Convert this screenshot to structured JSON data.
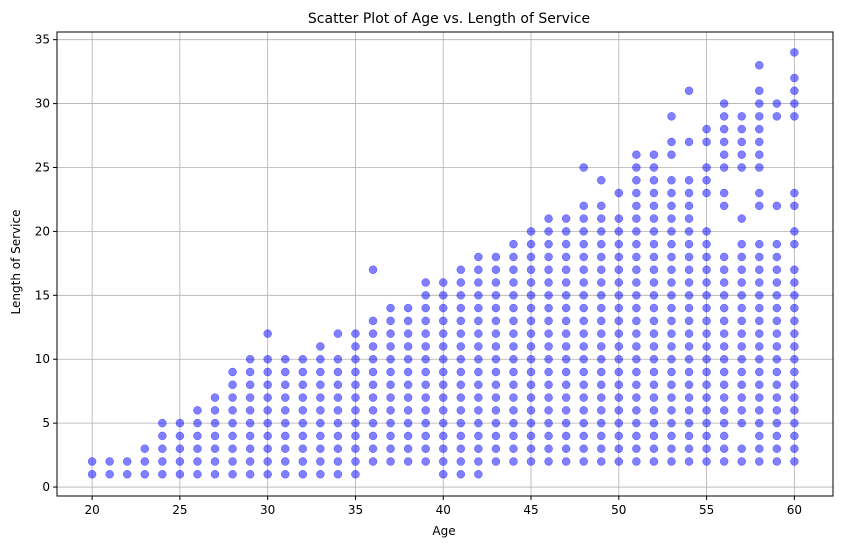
{
  "chart_data": {
    "type": "scatter",
    "title": "Scatter Plot of Age vs. Length of Service",
    "xlabel": "Age",
    "ylabel": "Length of Service",
    "xlim": [
      18,
      62.2
    ],
    "ylim": [
      -0.7,
      35.6
    ],
    "xticks": [
      20,
      25,
      30,
      35,
      40,
      45,
      50,
      55,
      60
    ],
    "yticks": [
      0,
      5,
      10,
      15,
      20,
      25,
      30,
      35
    ],
    "grid": true,
    "marker_color": "#0000ff",
    "marker_alpha": 0.5,
    "columns": [
      {
        "x": 20,
        "ys": [
          1,
          2
        ]
      },
      {
        "x": 21,
        "ys": [
          1,
          2
        ]
      },
      {
        "x": 22,
        "ys": [
          1,
          2
        ]
      },
      {
        "x": 23,
        "ys": [
          1,
          2,
          3
        ]
      },
      {
        "x": 24,
        "ys": [
          1,
          2,
          3,
          4,
          5
        ]
      },
      {
        "x": 25,
        "ys": [
          1,
          2,
          3,
          4,
          5
        ]
      },
      {
        "x": 26,
        "ys": [
          1,
          2,
          3,
          4,
          5,
          6
        ]
      },
      {
        "x": 27,
        "ys": [
          1,
          2,
          3,
          4,
          5,
          6,
          7
        ]
      },
      {
        "x": 28,
        "ys": [
          1,
          2,
          3,
          4,
          5,
          6,
          7,
          8,
          9
        ]
      },
      {
        "x": 29,
        "ys": [
          1,
          2,
          3,
          4,
          5,
          6,
          7,
          8,
          9,
          10
        ]
      },
      {
        "x": 30,
        "ys": [
          1,
          2,
          3,
          4,
          5,
          6,
          7,
          8,
          9,
          10,
          12
        ]
      },
      {
        "x": 31,
        "ys": [
          1,
          2,
          3,
          4,
          5,
          6,
          7,
          8,
          9,
          10
        ]
      },
      {
        "x": 32,
        "ys": [
          1,
          2,
          3,
          4,
          5,
          6,
          7,
          8,
          9,
          10
        ]
      },
      {
        "x": 33,
        "ys": [
          1,
          2,
          3,
          4,
          5,
          6,
          7,
          8,
          9,
          10,
          11
        ]
      },
      {
        "x": 34,
        "ys": [
          1,
          2,
          3,
          4,
          5,
          6,
          7,
          8,
          9,
          10,
          12
        ]
      },
      {
        "x": 35,
        "ys": [
          1,
          2,
          3,
          4,
          5,
          6,
          7,
          8,
          9,
          10,
          11,
          12
        ]
      },
      {
        "x": 36,
        "ys": [
          2,
          3,
          4,
          5,
          6,
          7,
          8,
          9,
          10,
          11,
          12,
          13,
          17
        ]
      },
      {
        "x": 37,
        "ys": [
          2,
          3,
          4,
          5,
          6,
          7,
          8,
          9,
          10,
          11,
          12,
          13,
          14
        ]
      },
      {
        "x": 38,
        "ys": [
          2,
          3,
          4,
          5,
          6,
          7,
          8,
          9,
          10,
          11,
          12,
          13,
          14
        ]
      },
      {
        "x": 39,
        "ys": [
          2,
          3,
          4,
          5,
          6,
          7,
          8,
          9,
          10,
          11,
          12,
          13,
          14,
          15,
          16
        ]
      },
      {
        "x": 40,
        "ys": [
          1,
          2,
          3,
          4,
          5,
          6,
          7,
          8,
          9,
          10,
          11,
          12,
          13,
          14,
          15,
          16
        ]
      },
      {
        "x": 41,
        "ys": [
          1,
          2,
          3,
          4,
          5,
          6,
          7,
          8,
          9,
          10,
          11,
          12,
          13,
          14,
          15,
          16,
          17
        ]
      },
      {
        "x": 42,
        "ys": [
          1,
          2,
          3,
          4,
          5,
          6,
          7,
          8,
          9,
          10,
          11,
          12,
          13,
          14,
          15,
          16,
          17,
          18
        ]
      },
      {
        "x": 43,
        "ys": [
          2,
          3,
          4,
          5,
          6,
          7,
          8,
          9,
          10,
          11,
          12,
          13,
          14,
          15,
          16,
          17,
          18
        ]
      },
      {
        "x": 44,
        "ys": [
          2,
          3,
          4,
          5,
          6,
          7,
          8,
          9,
          10,
          11,
          12,
          13,
          14,
          15,
          16,
          17,
          18,
          19
        ]
      },
      {
        "x": 45,
        "ys": [
          2,
          3,
          4,
          5,
          6,
          7,
          8,
          9,
          10,
          11,
          12,
          13,
          14,
          15,
          16,
          17,
          18,
          19,
          20
        ]
      },
      {
        "x": 46,
        "ys": [
          2,
          3,
          4,
          5,
          6,
          7,
          8,
          9,
          10,
          11,
          12,
          13,
          14,
          15,
          16,
          17,
          18,
          19,
          20,
          21
        ]
      },
      {
        "x": 47,
        "ys": [
          2,
          3,
          4,
          5,
          6,
          7,
          8,
          9,
          10,
          11,
          12,
          13,
          14,
          15,
          16,
          17,
          18,
          19,
          20,
          21
        ]
      },
      {
        "x": 48,
        "ys": [
          2,
          3,
          4,
          5,
          6,
          7,
          8,
          9,
          10,
          11,
          12,
          13,
          14,
          15,
          16,
          17,
          18,
          19,
          20,
          21,
          22,
          25
        ]
      },
      {
        "x": 49,
        "ys": [
          2,
          3,
          4,
          5,
          6,
          7,
          8,
          9,
          10,
          11,
          12,
          13,
          14,
          15,
          16,
          17,
          18,
          19,
          20,
          21,
          22,
          24
        ]
      },
      {
        "x": 50,
        "ys": [
          2,
          3,
          4,
          5,
          6,
          7,
          8,
          9,
          10,
          11,
          12,
          13,
          14,
          15,
          16,
          17,
          18,
          19,
          20,
          21,
          23
        ]
      },
      {
        "x": 51,
        "ys": [
          2,
          3,
          4,
          5,
          6,
          7,
          8,
          9,
          10,
          11,
          12,
          13,
          14,
          15,
          16,
          17,
          18,
          19,
          20,
          21,
          22,
          23,
          24,
          25,
          26
        ]
      },
      {
        "x": 52,
        "ys": [
          2,
          3,
          4,
          5,
          6,
          7,
          8,
          9,
          10,
          11,
          12,
          13,
          14,
          15,
          16,
          17,
          18,
          19,
          20,
          21,
          22,
          23,
          24,
          25,
          26
        ]
      },
      {
        "x": 53,
        "ys": [
          2,
          3,
          4,
          5,
          6,
          7,
          8,
          9,
          10,
          11,
          12,
          13,
          14,
          15,
          16,
          17,
          18,
          19,
          20,
          21,
          22,
          23,
          24,
          26,
          27,
          29
        ]
      },
      {
        "x": 54,
        "ys": [
          2,
          3,
          4,
          5,
          6,
          7,
          8,
          9,
          10,
          11,
          12,
          13,
          14,
          15,
          16,
          17,
          18,
          19,
          20,
          21,
          22,
          23,
          24,
          27,
          31
        ]
      },
      {
        "x": 55,
        "ys": [
          2,
          3,
          4,
          5,
          6,
          7,
          8,
          9,
          10,
          11,
          12,
          13,
          14,
          15,
          16,
          17,
          18,
          19,
          20,
          23,
          24,
          25,
          27,
          28
        ]
      },
      {
        "x": 56,
        "ys": [
          2,
          3,
          4,
          5,
          6,
          7,
          8,
          9,
          10,
          11,
          12,
          13,
          14,
          15,
          16,
          17,
          18,
          22,
          23,
          25,
          26,
          27,
          28,
          29,
          30
        ]
      },
      {
        "x": 57,
        "ys": [
          2,
          3,
          5,
          6,
          7,
          8,
          9,
          10,
          11,
          12,
          13,
          14,
          15,
          16,
          17,
          18,
          19,
          21,
          25,
          26,
          27,
          28,
          29
        ]
      },
      {
        "x": 58,
        "ys": [
          2,
          3,
          4,
          5,
          6,
          7,
          8,
          9,
          10,
          11,
          12,
          13,
          14,
          15,
          16,
          17,
          18,
          19,
          22,
          23,
          25,
          26,
          27,
          28,
          29,
          30,
          31,
          33
        ]
      },
      {
        "x": 59,
        "ys": [
          2,
          3,
          4,
          5,
          6,
          7,
          8,
          9,
          10,
          11,
          12,
          13,
          14,
          15,
          16,
          17,
          18,
          19,
          22,
          29,
          30
        ]
      },
      {
        "x": 60,
        "ys": [
          2,
          3,
          4,
          5,
          6,
          7,
          8,
          9,
          10,
          11,
          12,
          13,
          14,
          15,
          16,
          17,
          19,
          20,
          22,
          23,
          29,
          30,
          31,
          32,
          34
        ]
      }
    ]
  }
}
